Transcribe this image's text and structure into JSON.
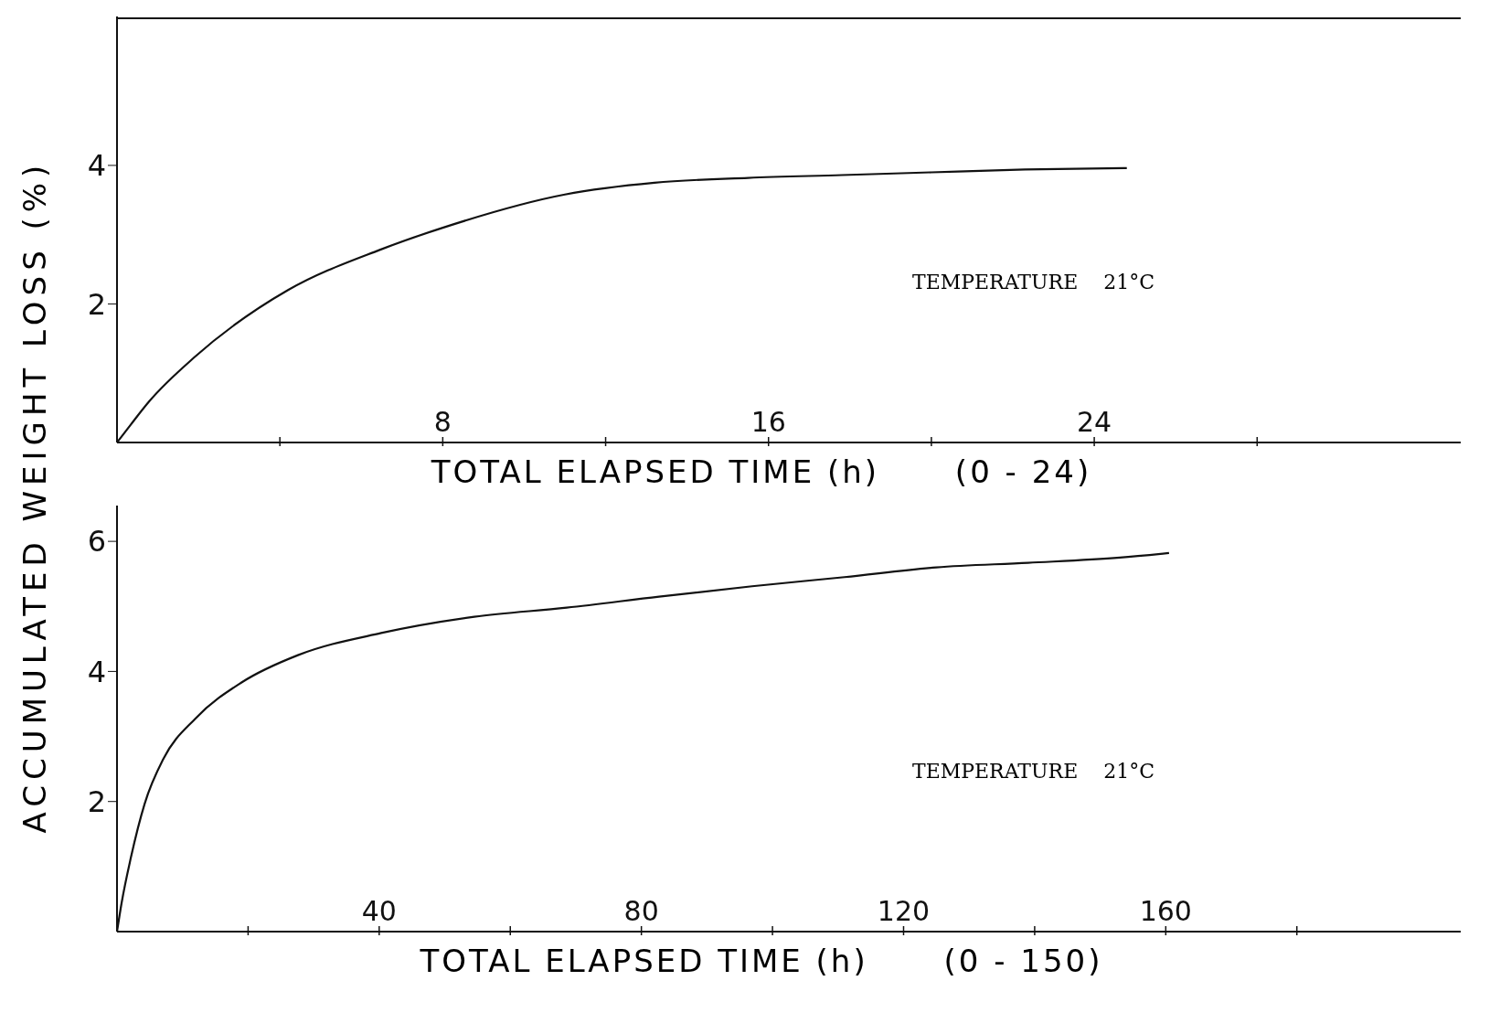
{
  "chart_data": [
    {
      "type": "line",
      "ylabel": "ACCUMULATED WEIGHT LOSS (%)",
      "xlabel": "TOTAL ELAPSED TIME (h)      (0 - 24)",
      "annotations": [
        "TEMPERATURE    21°C"
      ],
      "xlim": [
        0,
        33
      ],
      "ylim": [
        0,
        6.15
      ],
      "xticks": [
        {
          "value": 4,
          "label": null
        },
        8,
        {
          "value": 12,
          "label": null
        },
        16,
        {
          "value": 20,
          "label": null
        },
        24,
        {
          "value": 28,
          "label": null
        }
      ],
      "yticks": [
        2,
        4
      ],
      "grid": false,
      "legend": false,
      "marker": "none",
      "line_style": "solid",
      "series": [
        {
          "color": "#111111",
          "x": [
            0,
            0.34,
            0.8,
            1.9,
            4.2,
            6.45,
            8,
            11,
            13.2,
            15.5,
            17.8,
            20,
            22.3,
            24.8
          ],
          "values": [
            0,
            0.26,
            0.6,
            1.23,
            2.2,
            2.78,
            3.1,
            3.58,
            3.75,
            3.82,
            3.86,
            3.9,
            3.94,
            3.96
          ]
        }
      ]
    },
    {
      "type": "line",
      "xlabel": "TOTAL ELAPSED TIME (h)      (0 - 150)",
      "annotations": [
        "TEMPERATURE    21°C"
      ],
      "xlim": [
        0,
        205
      ],
      "ylim": [
        0,
        6.55
      ],
      "xticks": [
        {
          "value": 20,
          "label": null
        },
        40,
        {
          "value": 60,
          "label": null
        },
        80,
        {
          "value": 100,
          "label": null
        },
        120,
        {
          "value": 140,
          "label": null
        },
        160,
        {
          "value": 180,
          "label": null
        }
      ],
      "yticks": [
        2,
        4,
        6
      ],
      "grid": false,
      "legend": false,
      "marker": "none",
      "line_style": "solid",
      "series": [
        {
          "color": "#111111",
          "x": [
            0,
            0.7,
            2.1,
            4.2,
            7.1,
            12,
            19,
            27.6,
            40.3,
            54.5,
            68.6,
            82.7,
            96.9,
            111,
            125,
            139,
            153,
            160.5
          ],
          "values": [
            0,
            0.44,
            1.13,
            1.96,
            2.66,
            3.28,
            3.83,
            4.25,
            4.59,
            4.84,
            4.98,
            5.15,
            5.31,
            5.45,
            5.6,
            5.67,
            5.75,
            5.82
          ]
        }
      ]
    }
  ]
}
